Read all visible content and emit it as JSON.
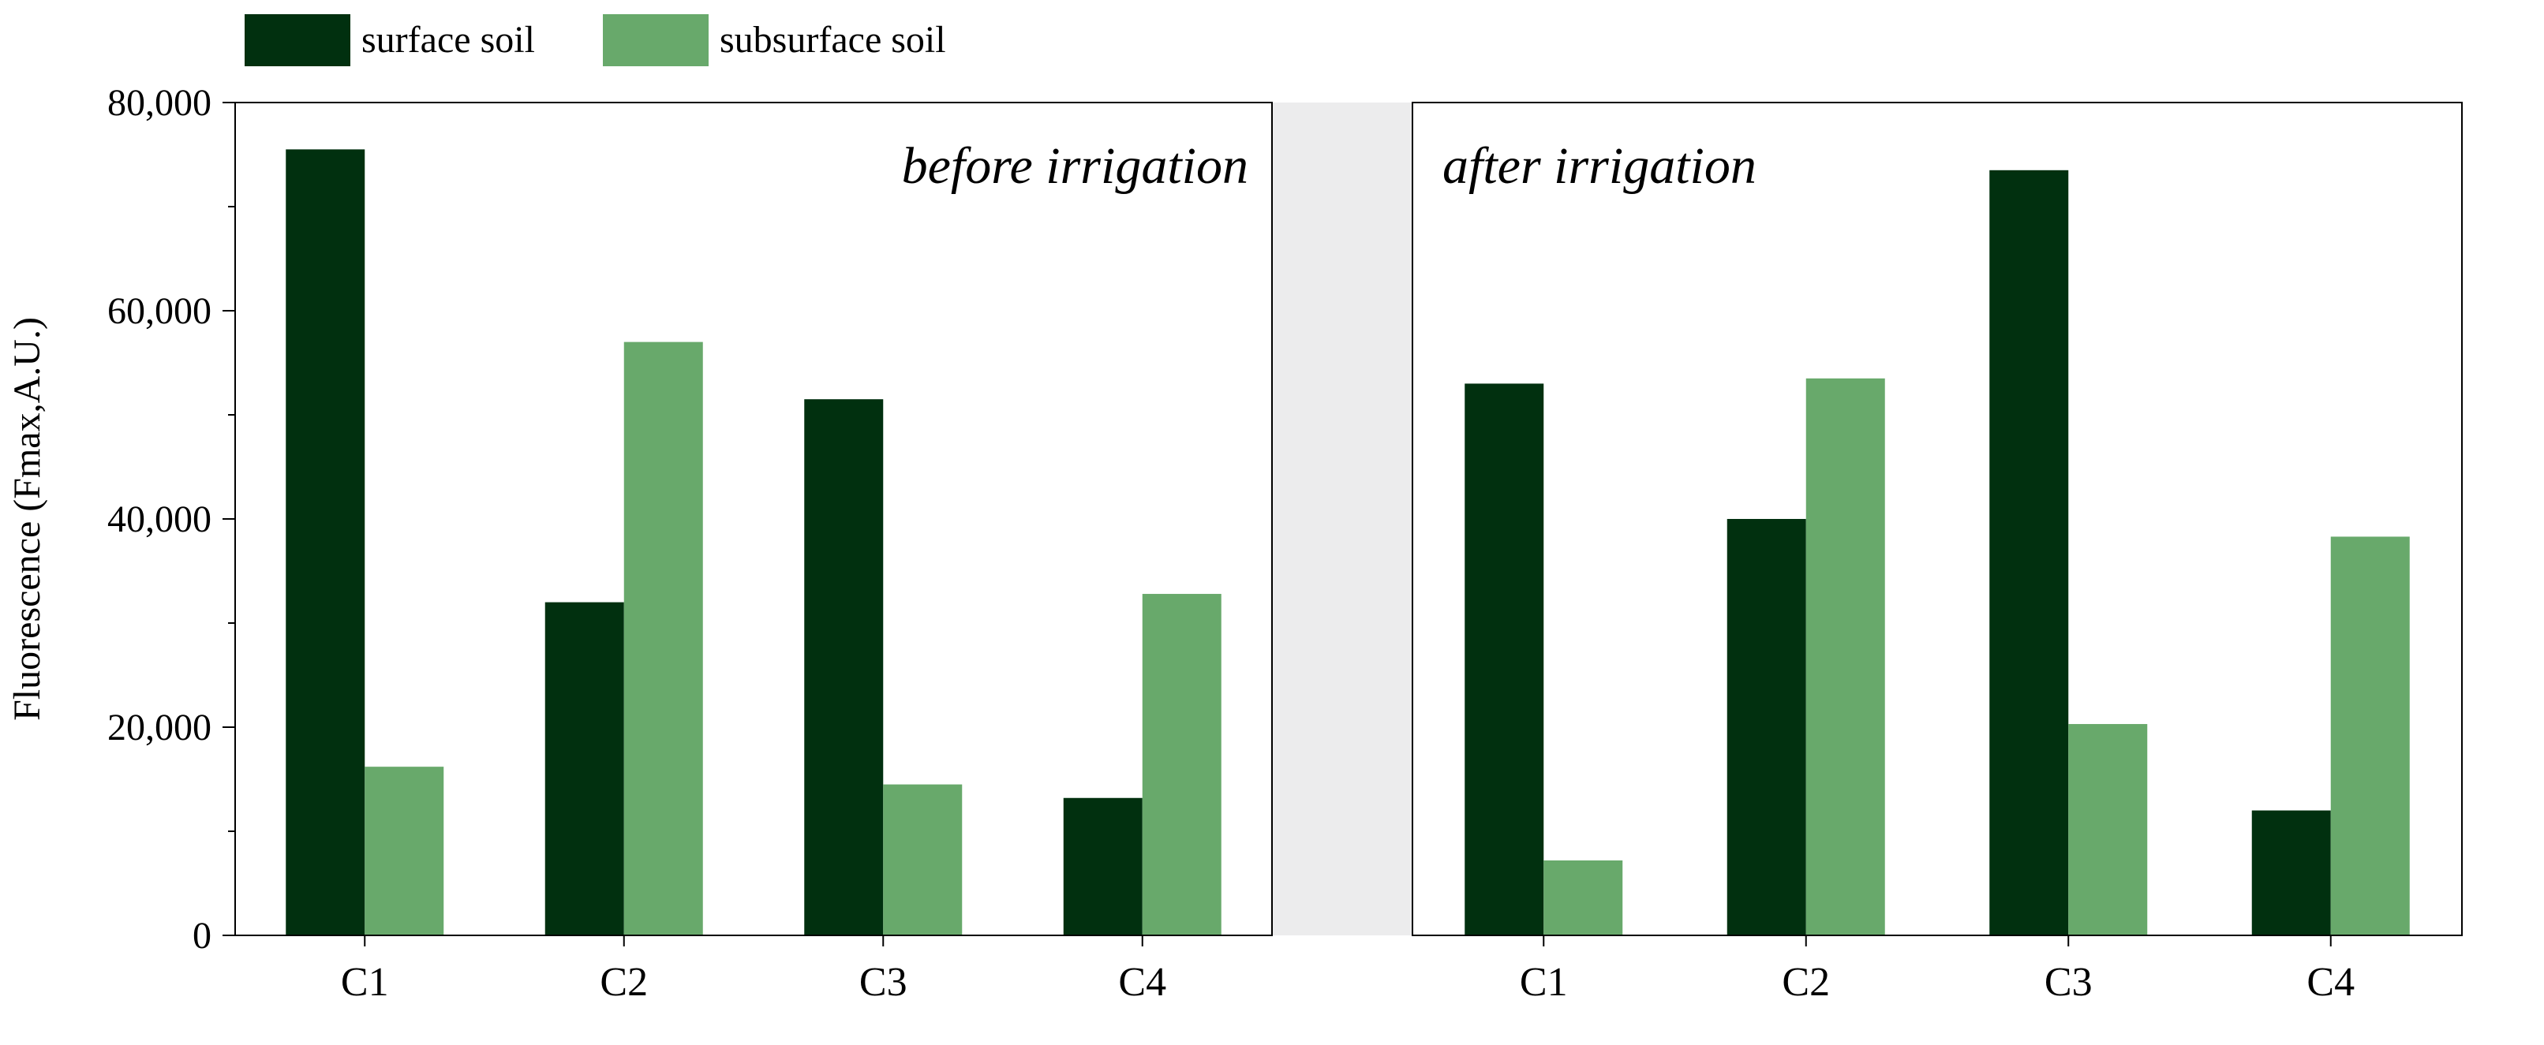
{
  "chart_data": {
    "type": "bar",
    "ylabel": "Fluorescence (Fmax,A.U.)",
    "ylim": [
      0,
      80000
    ],
    "y_ticks": [
      0,
      20000,
      40000,
      60000,
      80000
    ],
    "y_tick_labels": [
      "0",
      "20,000",
      "40,000",
      "60,000",
      "80,000"
    ],
    "categories": [
      "C1",
      "C2",
      "C3",
      "C4"
    ],
    "legend": {
      "position": "top-left",
      "entries": [
        "surface soil",
        "subsurface soil"
      ]
    },
    "colors": {
      "surface soil": "#01300f",
      "subsurface soil": "#68a96b",
      "gap": "#ececed"
    },
    "panels": [
      {
        "annotation": "before irrigation",
        "series": [
          {
            "name": "surface soil",
            "values": [
              75500,
              32000,
              51500,
              13200
            ]
          },
          {
            "name": "subsurface soil",
            "values": [
              16200,
              57000,
              14500,
              32800
            ]
          }
        ]
      },
      {
        "annotation": "after irrigation",
        "series": [
          {
            "name": "surface soil",
            "values": [
              53000,
              40000,
              73500,
              12000
            ]
          },
          {
            "name": "subsurface soil",
            "values": [
              7200,
              53500,
              20300,
              38300
            ]
          }
        ]
      }
    ]
  }
}
